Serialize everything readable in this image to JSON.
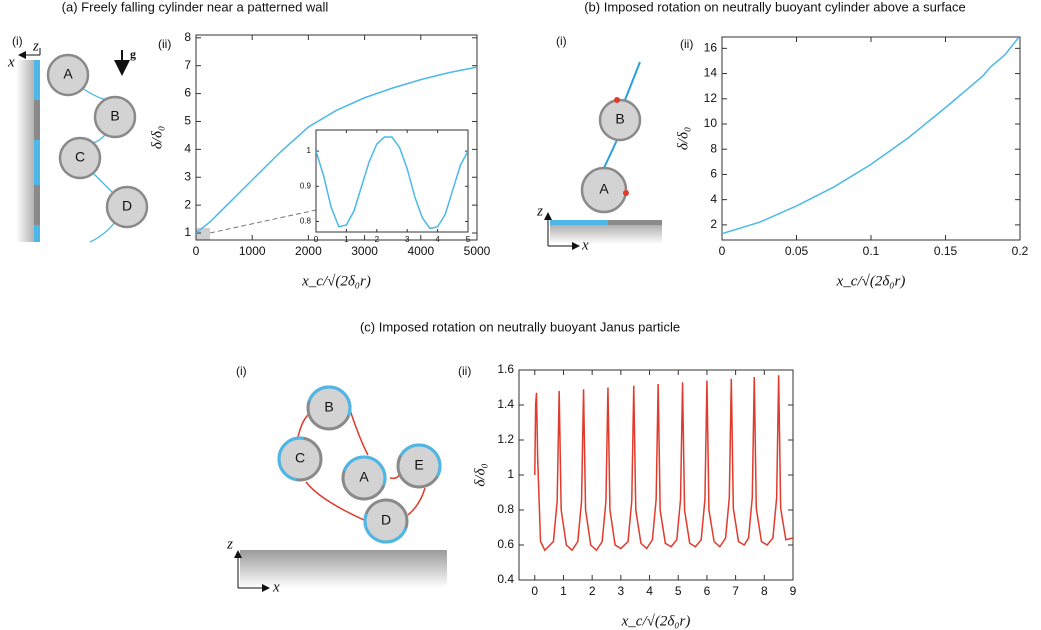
{
  "panels": [
    {
      "title": "(a) Freely falling cylinder near a patterned wall",
      "plot_label": "(ii)",
      "diagram": {
        "label": "(i)",
        "nodes": [
          "A",
          "B",
          "C",
          "D"
        ],
        "z": "z",
        "x": "x",
        "g": "g"
      }
    },
    {
      "title": "(b) Imposed rotation on neutrally buoyant cylinder above a surface",
      "plot_label": "(ii)",
      "diagram": {
        "label": "(i)",
        "nodes": [
          "B",
          "A"
        ],
        "z": "z",
        "x": "x"
      }
    },
    {
      "title": "(c) Imposed rotation on neutrally buoyant Janus particle",
      "plot_label": "(ii)",
      "diagram": {
        "label": "(i)",
        "nodes": [
          "B",
          "C",
          "A",
          "E",
          "D"
        ],
        "z": "z",
        "x": "x"
      }
    }
  ],
  "chart_data": [
    {
      "type": "line",
      "xlabel": "x_c/√(2δ₀r)",
      "ylabel": "δ/δ₀",
      "color": "#4db8e8",
      "xlim": [
        0,
        5000
      ],
      "ylim": [
        0.75,
        8.1
      ],
      "xticks": [
        0,
        1000,
        2000,
        3000,
        4000,
        5000
      ],
      "yticks": [
        1,
        2,
        3,
        4,
        5,
        6,
        7,
        8
      ],
      "x": [
        0,
        250,
        500,
        1000,
        1500,
        2000,
        2500,
        3000,
        3500,
        4000,
        4500,
        5000
      ],
      "values": [
        1.0,
        1.4,
        1.9,
        2.9,
        3.9,
        4.8,
        5.4,
        5.85,
        6.2,
        6.5,
        6.75,
        6.95
      ]
    },
    {
      "type": "line",
      "color": "#4db8e8",
      "xlim": [
        0,
        5
      ],
      "ylim": [
        0.77,
        1.06
      ],
      "xticks": [
        0,
        1,
        2,
        3,
        4,
        5
      ],
      "yticks": [
        0.8,
        0.9,
        1
      ],
      "x": [
        0,
        0.25,
        0.5,
        0.75,
        1,
        1.25,
        1.5,
        1.75,
        2,
        2.25,
        2.5,
        2.75,
        3,
        3.25,
        3.5,
        3.75,
        4,
        4.25,
        4.5,
        4.75,
        5
      ],
      "values": [
        1.0,
        0.93,
        0.84,
        0.785,
        0.79,
        0.83,
        0.9,
        0.97,
        1.02,
        1.04,
        1.04,
        1.01,
        0.95,
        0.87,
        0.81,
        0.78,
        0.785,
        0.82,
        0.89,
        0.96,
        1.0
      ]
    },
    {
      "type": "line",
      "xlabel": "x_c/√(2δ₀r)",
      "ylabel": "δ/δ₀",
      "color": "#4db8e8",
      "xlim": [
        0,
        0.2
      ],
      "ylim": [
        0.8,
        16.9
      ],
      "xticks": [
        0,
        0.05,
        0.1,
        0.15,
        0.2
      ],
      "yticks": [
        2,
        4,
        6,
        8,
        10,
        12,
        14,
        16
      ],
      "x": [
        0,
        0.025,
        0.05,
        0.075,
        0.1,
        0.125,
        0.15,
        0.175,
        0.18,
        0.19,
        0.2
      ],
      "values": [
        1.3,
        2.2,
        3.5,
        5,
        6.8,
        8.9,
        11.3,
        13.8,
        14.5,
        15.5,
        17
      ]
    },
    {
      "type": "line",
      "xlabel": "x_c/√(2δ₀r)",
      "ylabel": "δ/δ₀",
      "color": "#e03b2c",
      "xlim": [
        -0.55,
        9
      ],
      "ylim": [
        0.4,
        1.6
      ],
      "xticks": [
        0,
        1,
        2,
        3,
        4,
        5,
        6,
        7,
        8,
        9
      ],
      "yticks": [
        0.4,
        0.6,
        0.8,
        1,
        1.2,
        1.4,
        1.6
      ],
      "x": [
        0,
        0.03,
        0.06,
        0.1,
        0.2,
        0.35,
        0.65,
        0.78,
        0.85,
        0.92,
        1.1,
        1.3,
        1.5,
        1.63,
        1.7,
        1.77,
        1.95,
        2.15,
        2.35,
        2.48,
        2.55,
        2.62,
        2.8,
        3.0,
        3.25,
        3.38,
        3.45,
        3.52,
        3.7,
        3.9,
        4.1,
        4.23,
        4.3,
        4.37,
        4.55,
        4.75,
        4.95,
        5.08,
        5.15,
        5.22,
        5.4,
        5.6,
        5.8,
        5.93,
        6.0,
        6.07,
        6.25,
        6.45,
        6.65,
        6.78,
        6.85,
        6.92,
        7.1,
        7.3,
        7.45,
        7.58,
        7.65,
        7.72,
        7.9,
        8.1,
        8.3,
        8.43,
        8.5,
        8.57,
        8.75,
        9.0
      ],
      "values": [
        1.0,
        1.4,
        1.47,
        1.1,
        0.62,
        0.57,
        0.62,
        0.85,
        1.48,
        0.8,
        0.6,
        0.57,
        0.62,
        0.85,
        1.49,
        0.8,
        0.6,
        0.57,
        0.62,
        0.85,
        1.5,
        0.8,
        0.6,
        0.58,
        0.62,
        0.85,
        1.51,
        0.8,
        0.61,
        0.58,
        0.63,
        0.86,
        1.52,
        0.8,
        0.61,
        0.59,
        0.63,
        0.86,
        1.53,
        0.8,
        0.61,
        0.59,
        0.63,
        0.86,
        1.54,
        0.8,
        0.62,
        0.59,
        0.64,
        0.87,
        1.55,
        0.81,
        0.62,
        0.6,
        0.64,
        0.87,
        1.56,
        0.81,
        0.62,
        0.6,
        0.64,
        0.87,
        1.57,
        0.81,
        0.63,
        0.64
      ]
    }
  ]
}
